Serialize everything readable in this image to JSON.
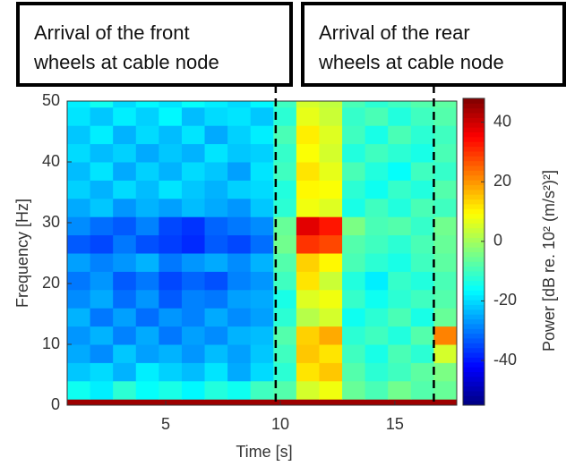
{
  "chart_data": {
    "type": "heatmap",
    "xlabel": "Time [s]",
    "ylabel": "Frequency [Hz]",
    "colormap": "jet",
    "xlim": [
      0.7,
      17.7
    ],
    "ylim": [
      0,
      50
    ],
    "xticks": [
      5,
      10,
      15
    ],
    "yticks": [
      0,
      10,
      20,
      30,
      40,
      50
    ],
    "xbins": [
      0.7,
      1.7,
      2.7,
      3.7,
      4.7,
      5.7,
      6.7,
      7.7,
      8.7,
      9.7,
      10.7,
      11.7,
      12.7,
      13.7,
      14.7,
      15.7,
      16.7,
      17.7
    ],
    "ybins": [
      0,
      1,
      4,
      7,
      10,
      13,
      16,
      19,
      22,
      25,
      28,
      31,
      34,
      37,
      40,
      43,
      46,
      49,
      50
    ],
    "z": [
      [
        45,
        45,
        45,
        45,
        45,
        45,
        45,
        45,
        45,
        45,
        45,
        45,
        45,
        45,
        45,
        45,
        45
      ],
      [
        -15,
        -18,
        -12,
        -16,
        -14,
        -17,
        -13,
        -15,
        -10,
        -8,
        5,
        8,
        -6,
        -9,
        -5,
        -8,
        -6
      ],
      [
        -22,
        -20,
        -24,
        -18,
        -21,
        -23,
        -19,
        -25,
        -20,
        -12,
        12,
        15,
        -8,
        -12,
        -10,
        -7,
        -4
      ],
      [
        -25,
        -28,
        -22,
        -26,
        -24,
        -27,
        -23,
        -26,
        -22,
        -10,
        15,
        12,
        -10,
        -14,
        -9,
        -12,
        5
      ],
      [
        -27,
        -24,
        -29,
        -25,
        -30,
        -26,
        -28,
        -24,
        -23,
        -8,
        14,
        18,
        -12,
        -10,
        -13,
        -8,
        22
      ],
      [
        -24,
        -30,
        -26,
        -31,
        -27,
        -29,
        -25,
        -28,
        -26,
        -12,
        2,
        5,
        -15,
        -12,
        -9,
        -14,
        -6
      ],
      [
        -28,
        -25,
        -31,
        -27,
        -33,
        -29,
        -30,
        -26,
        -25,
        -14,
        6,
        8,
        -11,
        -15,
        -12,
        -10,
        -8
      ],
      [
        -30,
        -27,
        -33,
        -30,
        -35,
        -32,
        -34,
        -29,
        -27,
        -10,
        12,
        4,
        -13,
        -18,
        -11,
        -13,
        -9
      ],
      [
        -26,
        -29,
        -27,
        -24,
        -30,
        -27,
        -25,
        -28,
        -24,
        -8,
        14,
        10,
        -9,
        -12,
        -14,
        -10,
        -7
      ],
      [
        -33,
        -35,
        -30,
        -34,
        -36,
        -38,
        -33,
        -35,
        -31,
        -5,
        30,
        28,
        -8,
        -10,
        -12,
        -9,
        -6
      ],
      [
        -28,
        -31,
        -33,
        -29,
        -35,
        -37,
        -32,
        -30,
        -28,
        -6,
        38,
        33,
        -4,
        -9,
        -8,
        -11,
        -5
      ],
      [
        -25,
        -22,
        -27,
        -24,
        -26,
        -23,
        -25,
        -27,
        -22,
        -12,
        8,
        6,
        -14,
        -10,
        -13,
        -9,
        -10
      ],
      [
        -21,
        -24,
        -20,
        -23,
        -19,
        -22,
        -24,
        -21,
        -20,
        -13,
        10,
        9,
        -12,
        -15,
        -11,
        -13,
        -8
      ],
      [
        -23,
        -19,
        -25,
        -21,
        -24,
        -20,
        -22,
        -26,
        -19,
        -10,
        12,
        7,
        -9,
        -13,
        -16,
        -10,
        -11
      ],
      [
        -20,
        -23,
        -21,
        -25,
        -22,
        -24,
        -19,
        -22,
        -21,
        -11,
        9,
        5,
        -13,
        -10,
        -12,
        -14,
        -9
      ],
      [
        -22,
        -18,
        -24,
        -20,
        -23,
        -19,
        -25,
        -21,
        -18,
        -9,
        11,
        6,
        -10,
        -14,
        -9,
        -12,
        -10
      ],
      [
        -19,
        -22,
        -18,
        -21,
        -17,
        -23,
        -20,
        -19,
        -22,
        -12,
        7,
        4,
        -11,
        -9,
        -13,
        -10,
        -8
      ],
      [
        -18,
        -15,
        -20,
        -17,
        -19,
        -16,
        -18,
        -20,
        -17,
        -10,
        5,
        3,
        -9,
        -12,
        -10,
        -8,
        -7
      ]
    ],
    "colorbar": {
      "label": "Power [dB re. 10² (m/s²)²]",
      "lim": [
        -55,
        48
      ],
      "ticks": [
        -40,
        -20,
        0,
        20,
        40
      ]
    },
    "annotations": [
      {
        "lines": [
          "Arrival of the front",
          "wheels at cable node"
        ],
        "time": 9.8
      },
      {
        "lines": [
          "Arrival of the rear",
          "wheels at cable node"
        ],
        "time": 16.7
      }
    ]
  }
}
